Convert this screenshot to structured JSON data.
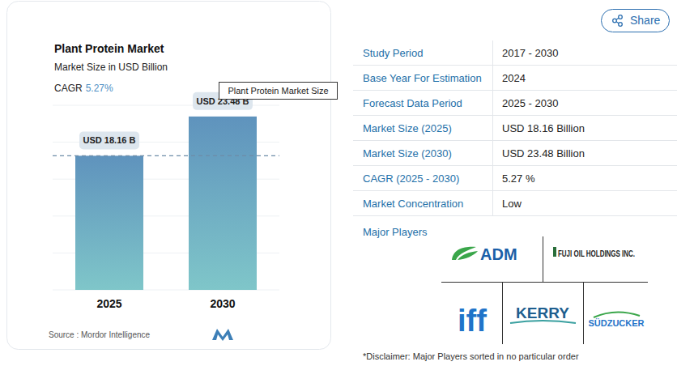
{
  "chart_data": {
    "type": "bar",
    "title": "Plant Protein Market",
    "subtitle": "Market Size in USD Billion",
    "cagr_label": "CAGR",
    "cagr_value": "5.27%",
    "annotation": "Plant Protein Market Size",
    "source": "Source : Mordor Intelligence",
    "categories": [
      "2025",
      "2030"
    ],
    "values": [
      18.16,
      23.48
    ],
    "value_labels": [
      "USD 18.16 B",
      "USD 23.48 B"
    ],
    "data_labels": true,
    "ylim": [
      0,
      25
    ],
    "yticks": [
      0,
      5,
      10,
      15,
      20,
      25
    ],
    "grid": true,
    "tick_labels": "x",
    "color": "#5f93bd"
  },
  "page": {
    "share": "Share",
    "table": {
      "rows": [
        [
          "Study Period",
          "2017 - 2030"
        ],
        [
          "Base Year For Estimation",
          "2024"
        ],
        [
          "Forecast Data Period",
          "2025 - 2030"
        ],
        [
          "Market Size (2025)",
          "USD 18.16 Billion"
        ],
        [
          "Market Size (2030)",
          "USD 23.48 Billion"
        ],
        [
          "CAGR (2025 - 2030)",
          "5.27 %"
        ],
        [
          "Market Concentration",
          "Low"
        ]
      ]
    },
    "major_players_title": "Major Players",
    "players": [
      "ADM",
      "FUJI OIL HOLDINGS INC.",
      "iff",
      "KERRY",
      "SÜDZUCKER"
    ],
    "disclaimer": "*Disclaimer: Major Players sorted in no particular order"
  }
}
